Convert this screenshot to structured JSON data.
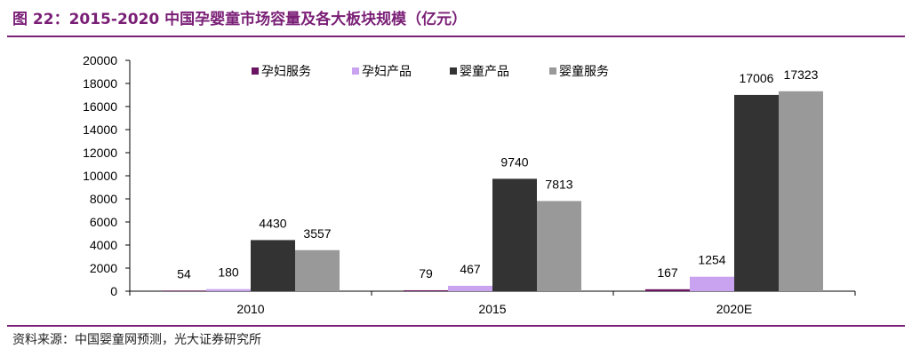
{
  "figure": {
    "title": "图 22：2015-2020 中国孕婴童市场容量及各大板块规模（亿元）",
    "source": "资料来源：中国婴童网预测，光大证券研究所"
  },
  "colors": {
    "accent": "#7a1f76",
    "series": [
      "#6a1462",
      "#c9a3f0",
      "#333333",
      "#999999"
    ]
  },
  "chart_data": {
    "type": "bar",
    "title": "2015-2020 中国孕婴童市场容量及各大板块规模（亿元）",
    "categories": [
      "2010",
      "2015",
      "2020E"
    ],
    "series": [
      {
        "name": "孕妇服务",
        "values": [
          54,
          79,
          167
        ]
      },
      {
        "name": "孕妇产品",
        "values": [
          180,
          467,
          1254
        ]
      },
      {
        "name": "婴童产品",
        "values": [
          4430,
          9740,
          17006
        ]
      },
      {
        "name": "婴童服务",
        "values": [
          3557,
          7813,
          17323
        ]
      }
    ],
    "ylim": [
      0,
      20000
    ],
    "yticks": [
      0,
      2000,
      4000,
      6000,
      8000,
      10000,
      12000,
      14000,
      16000,
      18000,
      20000
    ],
    "xlabel": "",
    "ylabel": "",
    "legend": "top",
    "grid": false
  }
}
